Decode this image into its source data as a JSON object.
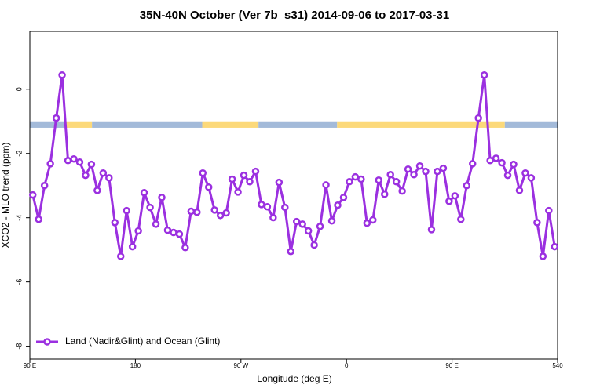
{
  "chart_data": {
    "type": "line",
    "title": "35N-40N October (Ver 7b_s31)   2014-09-06 to 2017-03-31",
    "x_label": "Longitude (deg E)",
    "y_label": "XCO2 - MLO trend (ppm)",
    "xlim": [
      90,
      540
    ],
    "ylim": [
      -8.4,
      1.8
    ],
    "xticks": [
      {
        "value": 90,
        "label": "90 E"
      },
      180,
      {
        "value": 270,
        "label": "90 W"
      },
      {
        "value": 360,
        "label": "0"
      },
      {
        "value": 450,
        "label": "90 E"
      },
      540
    ],
    "yticks": [
      0,
      -2,
      -4,
      -6,
      -8
    ],
    "grid": false,
    "legend": "bottom-left",
    "surface_band": {
      "ylim": [
        -1.2,
        -1.0
      ],
      "segments": [
        {
          "start": 90,
          "end": 121,
          "color": "#a3bad9"
        },
        {
          "start": 121,
          "end": 143,
          "color": "#fcd97a"
        },
        {
          "start": 143,
          "end": 237,
          "color": "#a3bad9"
        },
        {
          "start": 237,
          "end": 285,
          "color": "#fcd97a"
        },
        {
          "start": 285,
          "end": 352,
          "color": "#a3bad9"
        },
        {
          "start": 352,
          "end": 495,
          "color": "#fcd97a"
        },
        {
          "start": 495,
          "end": 540,
          "color": "#a3bad9"
        }
      ]
    },
    "x": [
      92.5,
      97.5,
      102.5,
      107.5,
      112.5,
      117.5,
      122.5,
      127.5,
      132.5,
      137.5,
      142.5,
      147.5,
      152.5,
      157.5,
      162.5,
      167.5,
      172.5,
      177.5,
      182.5,
      187.5,
      192.5,
      197.5,
      202.5,
      207.5,
      212.5,
      217.5,
      222.5,
      227.5,
      232.5,
      237.5,
      242.5,
      247.5,
      252.5,
      257.5,
      262.5,
      267.5,
      272.5,
      277.5,
      282.5,
      287.5,
      292.5,
      297.5,
      302.5,
      307.5,
      312.5,
      317.5,
      322.5,
      327.5,
      332.5,
      337.5,
      342.5,
      347.5,
      352.5,
      357.5,
      362.5,
      367.5,
      372.5,
      377.5,
      382.5,
      387.5,
      392.5,
      397.5,
      402.5,
      407.5,
      412.5,
      417.5,
      422.5,
      427.5,
      432.5,
      437.5,
      442.5,
      447.5,
      452.5,
      457.5,
      462.5,
      467.5,
      472.5,
      477.5,
      482.5,
      487.5,
      492.5,
      497.5,
      502.5,
      507.5,
      512.5,
      517.5,
      522.5,
      527.5,
      532.5,
      537.5
    ],
    "series": [
      {
        "name": "Land (Nadir&Glint) and Ocean (Glint)",
        "color": "#9b30e0",
        "values": [
          -3.29,
          -4.05,
          -3.0,
          -2.32,
          -0.9,
          0.44,
          -2.22,
          -2.17,
          -2.27,
          -2.68,
          -2.34,
          -3.15,
          -2.61,
          -2.76,
          -4.15,
          -5.2,
          -3.78,
          -4.9,
          -4.41,
          -3.22,
          -3.68,
          -4.2,
          -3.37,
          -4.39,
          -4.46,
          -4.51,
          -4.93,
          -3.8,
          -3.83,
          -2.61,
          -3.05,
          -3.76,
          -3.93,
          -3.85,
          -2.8,
          -3.2,
          -2.68,
          -2.88,
          -2.56,
          -3.59,
          -3.66,
          -4.0,
          -2.9,
          -3.68,
          -5.05,
          -4.12,
          -4.2,
          -4.41,
          -4.85,
          -4.27,
          -2.98,
          -4.1,
          -3.61,
          -3.37,
          -2.88,
          -2.73,
          -2.8,
          -4.17,
          -4.07,
          -2.83,
          -3.27,
          -2.66,
          -2.88,
          -3.17,
          -2.49,
          -2.66,
          -2.39,
          -2.56,
          -4.37,
          -2.56,
          -2.46,
          -3.49,
          -3.32,
          -4.05,
          -3.0,
          -2.32,
          -0.9,
          0.44,
          -2.22,
          -2.15,
          -2.29,
          -2.68,
          -2.34,
          -3.15,
          -2.61,
          -2.76,
          -4.15,
          -5.2,
          -3.78,
          -4.9
        ]
      }
    ]
  }
}
